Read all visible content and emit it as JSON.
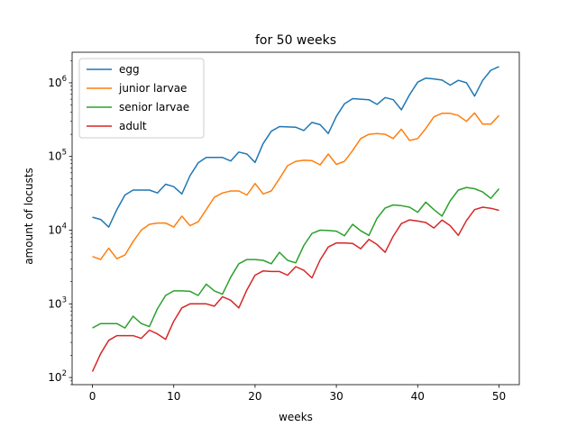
{
  "chart_data": {
    "type": "line",
    "title": "for 50 weeks",
    "xlabel": "weeks",
    "ylabel": "amount of locusts",
    "yscale": "log",
    "xlim": [
      -2.5,
      52.5
    ],
    "ylim": [
      80,
      2600000
    ],
    "grid": false,
    "legend_position": "upper-left",
    "x_ticks": [
      0,
      10,
      20,
      30,
      40,
      50
    ],
    "y_ticks": [
      {
        "value": 100,
        "base": "10",
        "exp": "2"
      },
      {
        "value": 1000,
        "base": "10",
        "exp": "3"
      },
      {
        "value": 10000,
        "base": "10",
        "exp": "4"
      },
      {
        "value": 100000,
        "base": "10",
        "exp": "5"
      },
      {
        "value": 1000000,
        "base": "10",
        "exp": "6"
      }
    ],
    "x": [
      0,
      1,
      2,
      3,
      4,
      5,
      6,
      7,
      8,
      9,
      10,
      11,
      12,
      13,
      14,
      15,
      16,
      17,
      18,
      19,
      20,
      21,
      22,
      23,
      24,
      25,
      26,
      27,
      28,
      29,
      30,
      31,
      32,
      33,
      34,
      35,
      36,
      37,
      38,
      39,
      40,
      41,
      42,
      43,
      44,
      45,
      46,
      47,
      48,
      49,
      50
    ],
    "series": [
      {
        "name": "egg",
        "color": "#1f77b4",
        "values": [
          15000,
          14000,
          11000,
          19000,
          30000,
          35000,
          35000,
          35000,
          32000,
          42000,
          39000,
          31000,
          55000,
          82000,
          97000,
          97000,
          97000,
          87000,
          115000,
          108000,
          83000,
          150000,
          220000,
          255000,
          252000,
          250000,
          225000,
          290000,
          270000,
          205000,
          350000,
          520000,
          610000,
          600000,
          590000,
          510000,
          630000,
          590000,
          430000,
          690000,
          1020000,
          1160000,
          1130000,
          1090000,
          930000,
          1080000,
          1000000,
          660000,
          1080000,
          1480000,
          1660000
        ]
      },
      {
        "name": "junior larvae",
        "color": "#ff7f0e",
        "values": [
          4400,
          4000,
          5700,
          4100,
          4600,
          7000,
          10000,
          12000,
          12500,
          12500,
          11000,
          15500,
          11500,
          13000,
          19000,
          28000,
          32000,
          34000,
          34000,
          30000,
          43000,
          31000,
          34000,
          50000,
          75000,
          86000,
          89000,
          88000,
          77000,
          108000,
          78000,
          86000,
          120000,
          175000,
          200000,
          205000,
          200000,
          175000,
          235000,
          165000,
          175000,
          240000,
          345000,
          385000,
          385000,
          360000,
          300000,
          390000,
          275000,
          275000,
          360000
        ]
      },
      {
        "name": "senior larvae",
        "color": "#2ca02c",
        "values": [
          470,
          540,
          540,
          540,
          470,
          680,
          540,
          490,
          860,
          1300,
          1500,
          1500,
          1480,
          1300,
          1850,
          1500,
          1350,
          2300,
          3500,
          4000,
          4000,
          3900,
          3500,
          5000,
          3900,
          3600,
          6200,
          9000,
          10000,
          9900,
          9700,
          8400,
          12000,
          9800,
          8500,
          14500,
          20000,
          22000,
          21500,
          20500,
          17500,
          24000,
          19000,
          15500,
          25000,
          35000,
          38000,
          36500,
          33000,
          27000,
          36500
        ]
      },
      {
        "name": "adult",
        "color": "#d62728",
        "values": [
          120,
          210,
          320,
          370,
          370,
          370,
          340,
          440,
          390,
          330,
          580,
          880,
          1000,
          1000,
          1000,
          930,
          1250,
          1120,
          880,
          1550,
          2450,
          2800,
          2750,
          2750,
          2450,
          3200,
          2850,
          2250,
          3950,
          5900,
          6700,
          6700,
          6600,
          5600,
          7500,
          6400,
          5000,
          8300,
          12300,
          13800,
          13300,
          12700,
          10700,
          13700,
          11500,
          8500,
          13500,
          19000,
          20500,
          19800,
          18600
        ]
      }
    ]
  }
}
